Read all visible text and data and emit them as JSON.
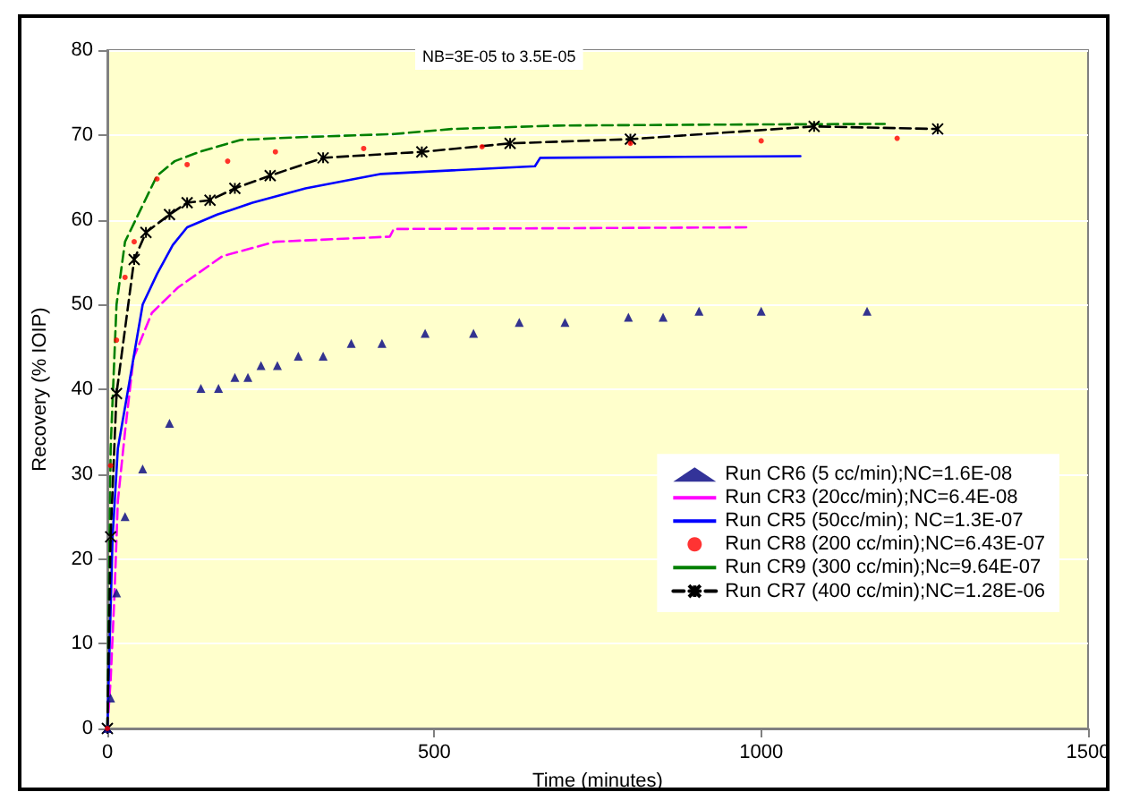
{
  "chart_data": {
    "type": "line",
    "xlabel": "Time (minutes)",
    "ylabel": "Recovery (% IOIP)",
    "annotations": [
      "NB=3E-05 to 3.5E-05"
    ],
    "xlim": [
      0,
      1500
    ],
    "xticks": [
      0,
      500,
      1000,
      1500
    ],
    "ylim": [
      0,
      80
    ],
    "yticks": [
      0,
      10,
      20,
      30,
      40,
      50,
      60,
      70,
      80
    ],
    "grid": "y",
    "legend": "bottom right",
    "series": [
      {
        "name": "Run CR6 (5 cc/min);NC=1.6E-08",
        "type": "scatter",
        "marker": "triangle",
        "color": "#000080",
        "x": [
          0,
          5,
          14,
          27,
          54,
          95,
          143,
          170,
          195,
          215,
          235,
          260,
          292,
          330,
          373,
          420,
          486,
          560,
          630,
          700,
          797,
          850,
          905,
          1000,
          1162
        ],
        "values": [
          0,
          3.6,
          16,
          25,
          30.6,
          36,
          40.1,
          40.1,
          41.4,
          41.4,
          42.8,
          42.8,
          43.9,
          43.9,
          45.4,
          45.4,
          46.6,
          46.6,
          47.9,
          47.9,
          48.5,
          48.5,
          49.2,
          49.2,
          49.2
        ]
      },
      {
        "name": "Run CR3 (20cc/min);NC=6.4E-08",
        "line_style": "dashed",
        "marker": "none",
        "color": "#ff00ff",
        "x": [
          0,
          5,
          11,
          16,
          27,
          40,
          68,
          108,
          176,
          257,
          432,
          438,
          984
        ],
        "values": [
          0,
          5.7,
          16,
          26.8,
          35,
          43.7,
          49,
          52,
          55.7,
          57.4,
          58,
          58.9,
          59.1
        ]
      },
      {
        "name": "Run CR5 (50cc/min); NC=1.3E-07",
        "line_style": "solid",
        "marker": "none",
        "color": "#0000ff",
        "x": [
          0,
          8,
          16,
          32,
          54,
          76,
          100,
          122,
          168,
          222,
          303,
          419,
          654,
          662,
          1060
        ],
        "values": [
          0,
          22.6,
          33,
          40.1,
          50,
          53.6,
          57,
          59.1,
          60.6,
          62,
          63.7,
          65.4,
          66.3,
          67.3,
          67.5
        ]
      },
      {
        "name": "Run CR8 (200 cc/min);NC=6.43E-07",
        "type": "scatter",
        "marker": "circle",
        "color": "#ff0000",
        "x": [
          0,
          5,
          14,
          27,
          41,
          76,
          122,
          184,
          257,
          392,
          573,
          800,
          1000,
          1208
        ],
        "values": [
          0,
          31,
          45.8,
          53.2,
          57.4,
          64.8,
          66.5,
          66.9,
          68,
          68.4,
          68.6,
          69,
          69.3,
          69.6
        ]
      },
      {
        "name": "Run CR9 (300 cc/min);Nc=9.64E-07",
        "line_style": "dashed",
        "marker": "none",
        "color": "#008000",
        "x": [
          0,
          5,
          14,
          27,
          76,
          103,
          141,
          203,
          284,
          438,
          527,
          689,
          900,
          1189
        ],
        "values": [
          0,
          33,
          50,
          57.4,
          65.2,
          66.9,
          68,
          69.4,
          69.7,
          70.1,
          70.7,
          71.1,
          71.2,
          71.3
        ]
      },
      {
        "name": "Run CR7 (400 cc/min);NC=1.28E-06",
        "line_style": "dashed",
        "marker": "cross",
        "color": "#000000",
        "x": [
          0,
          5,
          14,
          41,
          59,
          95,
          122,
          157,
          195,
          249,
          330,
          481,
          616,
          800,
          1081,
          1270
        ],
        "values": [
          0,
          22.6,
          39.5,
          55.3,
          58.5,
          60.6,
          62,
          62.3,
          63.7,
          65.2,
          67.3,
          68,
          69,
          69.5,
          71,
          70.7
        ]
      }
    ]
  }
}
